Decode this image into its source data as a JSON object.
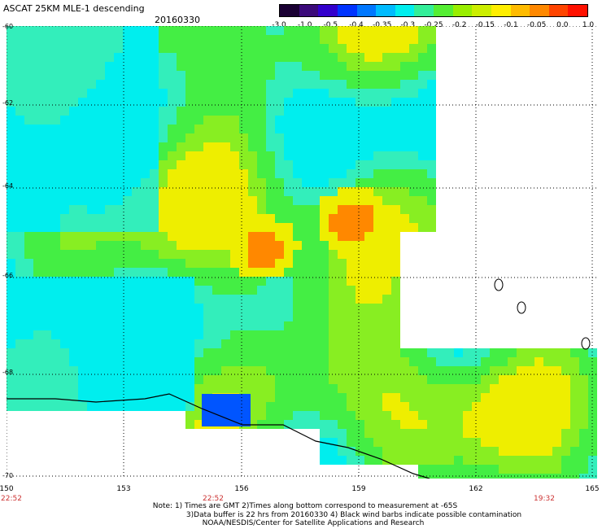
{
  "header": {
    "title": "ASCAT 25KM MLE-1 descending",
    "date": "20160330"
  },
  "colorbar": {
    "tick_labels": [
      "-3.0",
      "-1.0",
      "-0.5",
      "-0.4",
      "-0.35",
      "-0.3",
      "-0.25",
      "-0.2",
      "-0.15",
      "-0.1",
      "-0.05",
      "0.0",
      "1.0"
    ],
    "colors": [
      "#1a0033",
      "#3b0a7a",
      "#3300cc",
      "#0033ff",
      "#0077ff",
      "#00bbff",
      "#00eeee",
      "#33ee99",
      "#55ee33",
      "#99ee00",
      "#ccee00",
      "#ffee00",
      "#ffbb00",
      "#ff8800",
      "#ff4400",
      "#ff1100"
    ]
  },
  "axes": {
    "latitudes": [
      "-60",
      "-62",
      "-64",
      "-66",
      "-68",
      "-70"
    ],
    "longitudes": [
      "150",
      "153",
      "156",
      "159",
      "162",
      "165"
    ]
  },
  "times": [
    "22:52",
    "22:52",
    "19:32"
  ],
  "note": {
    "line1": "Note: 1) Times are GMT 2)Times along bottom correspond to measurement at -65S",
    "line2": "3)Data buffer is 22 hrs from 20160330 4) Black wind barbs indicate possible contamination",
    "line3": "NOAA/NESDIS/Center for Satellite Applications and Research"
  },
  "palette": {
    "cyan": "#00eeee",
    "teal": "#33eebb",
    "green": "#44ee44",
    "lime": "#88ee22",
    "yellow": "#eeee00",
    "orange": "#ff8800",
    "blue": "#0055ff"
  }
}
